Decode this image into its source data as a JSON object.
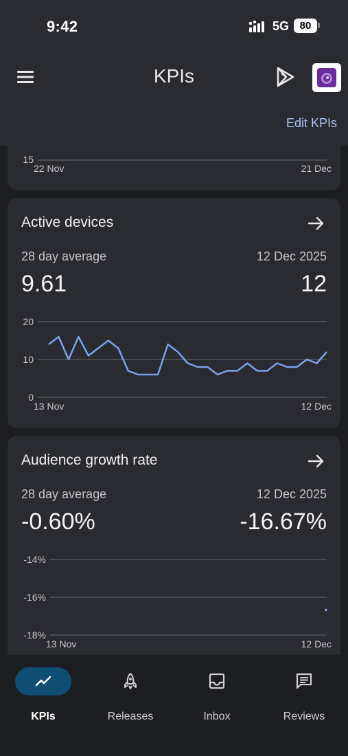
{
  "status_bar": {
    "time": "9:42",
    "network": "5G",
    "battery": "80"
  },
  "header": {
    "title": "KPIs",
    "edit_label": "Edit KPIs",
    "icons": [
      "menu-icon",
      "play-console-icon",
      "app-avatar"
    ]
  },
  "previous_card": {
    "chart_data": {
      "type": "line",
      "y_ticks": [
        "15"
      ],
      "x_ticks": [
        "22 Nov",
        "21 Dec"
      ]
    }
  },
  "active_devices": {
    "title": "Active devices",
    "avg_label": "28 day average",
    "avg_value": "9.61",
    "date_label": "12 Dec 2025",
    "date_value": "12",
    "chart_data": {
      "type": "line",
      "ylim": [
        0,
        20
      ],
      "y_ticks": [
        "0",
        "10",
        "20"
      ],
      "x_ticks": [
        "13 Nov",
        "12 Dec"
      ],
      "series": [
        {
          "values": [
            14,
            16,
            10,
            16,
            11,
            13,
            15,
            13,
            7,
            6,
            6,
            6,
            14,
            12,
            9,
            8,
            8,
            6,
            7,
            7,
            9,
            7,
            7,
            9,
            8,
            8,
            10,
            9,
            12
          ]
        }
      ],
      "color": "#7aa2ef"
    }
  },
  "audience_growth": {
    "title": "Audience growth rate",
    "avg_label": "28 day average",
    "avg_value": "-0.60%",
    "date_label": "12 Dec 2025",
    "date_value": "-16.67%",
    "chart_data": {
      "type": "line",
      "ylim": [
        -18,
        -14
      ],
      "y_ticks": [
        "-14%",
        "-16%",
        "-18%"
      ],
      "x_ticks": [
        "13 Nov",
        "12 Dec"
      ],
      "series": [
        {
          "values": [
            -16.67
          ]
        }
      ],
      "color": "#7aa2ef"
    }
  },
  "bottom_nav": {
    "items": [
      {
        "label": "KPIs",
        "icon": "trending-up-icon",
        "active": true
      },
      {
        "label": "Releases",
        "icon": "rocket-icon",
        "active": false
      },
      {
        "label": "Inbox",
        "icon": "inbox-icon",
        "active": false
      },
      {
        "label": "Reviews",
        "icon": "reviews-icon",
        "active": false
      }
    ]
  }
}
